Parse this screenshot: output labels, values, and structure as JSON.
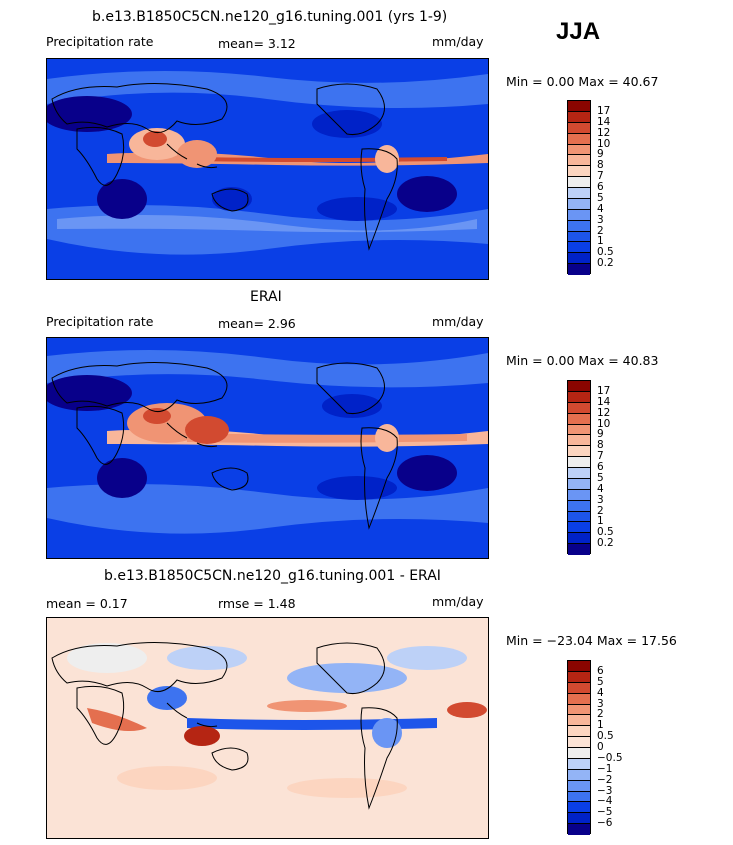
{
  "season": "JJA",
  "colors": {
    "abs_scale": [
      "#08008a",
      "#0022c8",
      "#0a3fe6",
      "#1d55ea",
      "#3d73f0",
      "#6a95f4",
      "#93b4f6",
      "#bdd1f7",
      "#eeeeee",
      "#fcd5c0",
      "#f8b69a",
      "#f09474",
      "#e46f4f",
      "#d24a30",
      "#b52513",
      "#8a0500"
    ],
    "diff_scale": [
      "#08008a",
      "#0022c8",
      "#0a3fe6",
      "#3d73f0",
      "#6a95f4",
      "#93b4f6",
      "#bdd1f7",
      "#eeeeee",
      "#fbe3d6",
      "#fcd5c0",
      "#f8b69a",
      "#f09474",
      "#e46f4f",
      "#d24a30",
      "#b52513",
      "#8a0500"
    ]
  },
  "panels": [
    {
      "title": "b.e13.B1850C5CN.ne120_g16.tuning.001 (yrs 1-9)",
      "left_label": "Precipitation rate",
      "center_label": "mean=   3.12",
      "units": "mm/day",
      "minmax": "Min =   0.00 Max =  40.67",
      "ticks": [
        "17",
        "14",
        "12",
        "10",
        "9",
        "8",
        "7",
        "6",
        "5",
        "4",
        "3",
        "2",
        "1",
        "0.5",
        "0.2"
      ]
    },
    {
      "title": "ERAI",
      "left_label": "Precipitation rate",
      "center_label": "mean=   2.96",
      "units": "mm/day",
      "minmax": "Min =   0.00 Max =  40.83",
      "ticks": [
        "17",
        "14",
        "12",
        "10",
        "9",
        "8",
        "7",
        "6",
        "5",
        "4",
        "3",
        "2",
        "1",
        "0.5",
        "0.2"
      ]
    },
    {
      "title": "b.e13.B1850C5CN.ne120_g16.tuning.001 - ERAI",
      "left_label": "mean =   0.17",
      "center_label": "rmse =   1.48",
      "units": "mm/day",
      "minmax": "Min = −23.04 Max =  17.56",
      "ticks": [
        "6",
        "5",
        "4",
        "3",
        "2",
        "1",
        "0.5",
        "0",
        "−0.5",
        "−1",
        "−2",
        "−3",
        "−4",
        "−5",
        "−6"
      ]
    }
  ]
}
